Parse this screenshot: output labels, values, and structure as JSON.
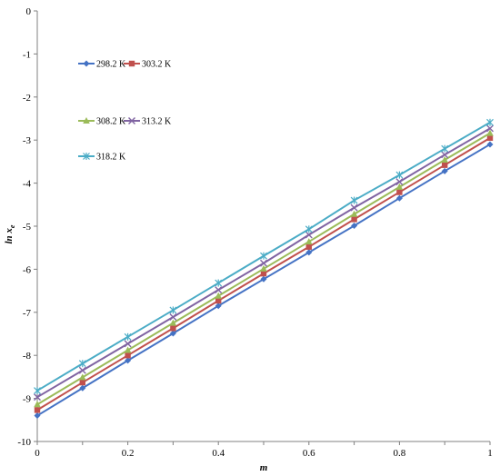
{
  "chart_data": {
    "type": "line",
    "title": "",
    "xlabel": "m",
    "ylabel_main": "ln x",
    "ylabel_sub": "e",
    "xlim": [
      0,
      1
    ],
    "ylim": [
      -10,
      0
    ],
    "x_ticks": [
      "0",
      "0.2",
      "0.4",
      "0.6",
      "0.8",
      "1"
    ],
    "y_ticks": [
      "0",
      "-1",
      "-2",
      "-3",
      "-4",
      "-5",
      "-6",
      "-7",
      "-8",
      "-9",
      "-10"
    ],
    "grid": false,
    "x": [
      0,
      0.1,
      0.2,
      0.3,
      0.4,
      0.5,
      0.6,
      0.7,
      0.8,
      0.9,
      1.0
    ],
    "series": [
      {
        "name": "298.2 K",
        "color": "#4472C4",
        "marker": "diamond",
        "values": [
          -9.4,
          -8.76,
          -8.12,
          -7.49,
          -6.85,
          -6.23,
          -5.61,
          -4.99,
          -4.35,
          -3.72,
          -3.1
        ]
      },
      {
        "name": "303.2 K",
        "color": "#C0504D",
        "marker": "square",
        "values": [
          -9.27,
          -8.63,
          -8.0,
          -7.37,
          -6.73,
          -6.1,
          -5.48,
          -4.84,
          -4.21,
          -3.58,
          -2.95
        ]
      },
      {
        "name": "308.2 K",
        "color": "#9BBB59",
        "marker": "triangle",
        "values": [
          -9.14,
          -8.51,
          -7.88,
          -7.25,
          -6.62,
          -5.99,
          -5.36,
          -4.72,
          -4.09,
          -3.46,
          -2.84
        ]
      },
      {
        "name": "313.2 K",
        "color": "#8064A2",
        "marker": "x",
        "values": [
          -8.97,
          -8.35,
          -7.73,
          -7.11,
          -6.48,
          -5.86,
          -5.2,
          -4.57,
          -3.97,
          -3.34,
          -2.73
        ]
      },
      {
        "name": "318.2 K",
        "color": "#4BACC6",
        "marker": "star",
        "values": [
          -8.82,
          -8.19,
          -7.57,
          -6.95,
          -6.32,
          -5.69,
          -5.07,
          -4.4,
          -3.81,
          -3.2,
          -2.59
        ]
      }
    ],
    "legend": "upper-left, stacked in three rows"
  }
}
